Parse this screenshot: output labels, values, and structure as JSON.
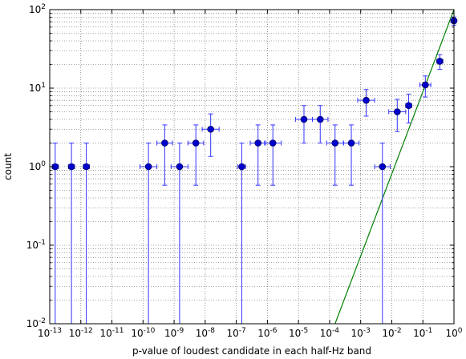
{
  "chart_data": {
    "type": "scatter",
    "xlabel": "p-value of loudest candidate in each half-Hz band",
    "ylabel": "count",
    "xscale": "log",
    "yscale": "log",
    "xlim": [
      1e-13,
      1
    ],
    "ylim": [
      0.01,
      100
    ],
    "grid": true,
    "colors": {
      "points": "#0000cc",
      "errorbars": "#3333ff",
      "fit_line": "#008000"
    },
    "x_ticks": [
      {
        "base": "10",
        "exp": "-13"
      },
      {
        "base": "10",
        "exp": "-12"
      },
      {
        "base": "10",
        "exp": "-11"
      },
      {
        "base": "10",
        "exp": "-10"
      },
      {
        "base": "10",
        "exp": "-9"
      },
      {
        "base": "10",
        "exp": "-8"
      },
      {
        "base": "10",
        "exp": "-7"
      },
      {
        "base": "10",
        "exp": "-6"
      },
      {
        "base": "10",
        "exp": "-5"
      },
      {
        "base": "10",
        "exp": "-4"
      },
      {
        "base": "10",
        "exp": "-3"
      },
      {
        "base": "10",
        "exp": "-2"
      },
      {
        "base": "10",
        "exp": "-1"
      },
      {
        "base": "10",
        "exp": "0"
      }
    ],
    "y_ticks": [
      {
        "base": "10",
        "exp": "-2"
      },
      {
        "base": "10",
        "exp": "-1"
      },
      {
        "base": "10",
        "exp": "0"
      },
      {
        "base": "10",
        "exp": "1"
      },
      {
        "base": "10",
        "exp": "2"
      }
    ],
    "points": [
      {
        "x": 1.5e-13,
        "y": 1,
        "xerr": [
          1.2e-13,
          1.9e-13
        ],
        "yerr": [
          0.01,
          2
        ]
      },
      {
        "x": 5e-13,
        "y": 1,
        "xerr": [
          4e-13,
          6.3e-13
        ],
        "yerr": [
          0.01,
          2
        ]
      },
      {
        "x": 1.5e-12,
        "y": 1,
        "xerr": [
          1.2e-12,
          1.9e-12
        ],
        "yerr": [
          0.01,
          2
        ]
      },
      {
        "x": 1.5e-10,
        "y": 1,
        "xerr": [
          8e-11,
          2.8e-10
        ],
        "yerr": [
          0.01,
          2
        ]
      },
      {
        "x": 5e-10,
        "y": 2,
        "xerr": [
          2.8e-10,
          8.9e-10
        ],
        "yerr": [
          0.58,
          3.4
        ]
      },
      {
        "x": 1.5e-09,
        "y": 1,
        "xerr": [
          8e-10,
          2.8e-09
        ],
        "yerr": [
          0.01,
          2
        ]
      },
      {
        "x": 5e-09,
        "y": 2,
        "xerr": [
          2.8e-09,
          8.9e-09
        ],
        "yerr": [
          0.58,
          3.4
        ]
      },
      {
        "x": 1.5e-08,
        "y": 3,
        "xerr": [
          8e-09,
          2.8e-08
        ],
        "yerr": [
          1.35,
          4.7
        ]
      },
      {
        "x": 1.5e-07,
        "y": 1,
        "xerr": [
          1.1e-07,
          2e-07
        ],
        "yerr": [
          0.01,
          2
        ]
      },
      {
        "x": 5e-07,
        "y": 2,
        "xerr": [
          2.8e-07,
          8.9e-07
        ],
        "yerr": [
          0.58,
          3.4
        ]
      },
      {
        "x": 1.5e-06,
        "y": 2,
        "xerr": [
          8e-07,
          2.8e-06
        ],
        "yerr": [
          0.58,
          3.4
        ]
      },
      {
        "x": 1.5e-05,
        "y": 4,
        "xerr": [
          8e-06,
          2.8e-05
        ],
        "yerr": [
          2,
          6
        ]
      },
      {
        "x": 5e-05,
        "y": 4,
        "xerr": [
          2.8e-05,
          8.9e-05
        ],
        "yerr": [
          2,
          6
        ]
      },
      {
        "x": 0.00015,
        "y": 2,
        "xerr": [
          8e-05,
          0.00028
        ],
        "yerr": [
          0.58,
          3.4
        ]
      },
      {
        "x": 0.0005,
        "y": 2,
        "xerr": [
          0.00028,
          0.00089
        ],
        "yerr": [
          0.58,
          3.4
        ]
      },
      {
        "x": 0.0015,
        "y": 7,
        "xerr": [
          0.0008,
          0.0028
        ],
        "yerr": [
          4.4,
          9.6
        ]
      },
      {
        "x": 0.005,
        "y": 1,
        "xerr": [
          0.0028,
          0.0089
        ],
        "yerr": [
          0.01,
          2
        ]
      },
      {
        "x": 0.015,
        "y": 5,
        "xerr": [
          0.008,
          0.028
        ],
        "yerr": [
          2.8,
          7.2
        ]
      },
      {
        "x": 0.035,
        "y": 6,
        "xerr": [
          0.028,
          0.044
        ],
        "yerr": [
          3.6,
          8.4
        ]
      },
      {
        "x": 0.12,
        "y": 11,
        "xerr": [
          0.08,
          0.18
        ],
        "yerr": [
          7.7,
          14.3
        ]
      },
      {
        "x": 0.35,
        "y": 22,
        "xerr": [
          0.28,
          0.44
        ],
        "yerr": [
          17.3,
          26.7
        ]
      },
      {
        "x": 1,
        "y": 72,
        "xerr": [
          0.8,
          1
        ],
        "yerr": [
          63.5,
          80.5
        ]
      }
    ],
    "fit_line": [
      {
        "x": 0.00015,
        "y": 0.01
      },
      {
        "x": 1,
        "y": 100
      }
    ]
  }
}
